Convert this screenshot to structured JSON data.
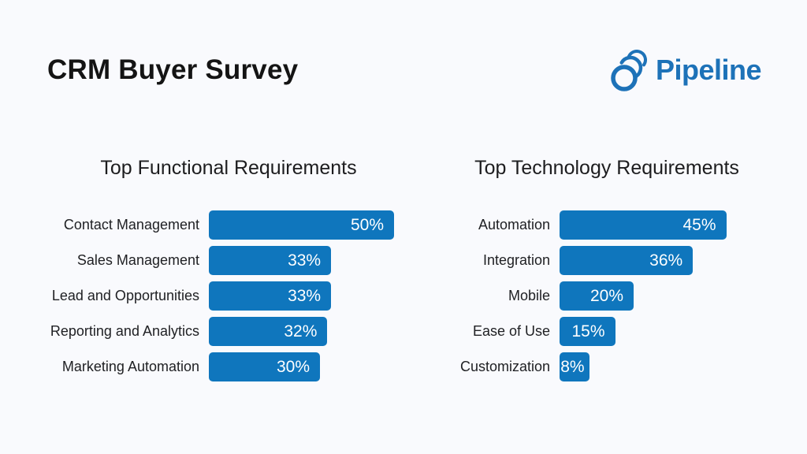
{
  "header": {
    "title": "CRM Buyer Survey"
  },
  "logo": {
    "text": "Pipeline",
    "color": "#1d72b8",
    "icon": "pipeline-rings-icon"
  },
  "colors": {
    "background": "#f9fafd",
    "bar": "#0f76bd",
    "bar_value_text": "#ffffff",
    "category_label": "#202124",
    "title_text": "#141414"
  },
  "chart_data": [
    {
      "type": "bar",
      "orientation": "horizontal",
      "title": "Top Functional Requirements",
      "categories": [
        "Contact Management",
        "Sales Management",
        "Lead and Opportunities",
        "Reporting and Analytics",
        "Marketing Automation"
      ],
      "values": [
        50,
        33,
        33,
        32,
        30
      ],
      "value_labels": [
        "50%",
        "33%",
        "33%",
        "32%",
        "30%"
      ],
      "unit": "%",
      "xlim": [
        0,
        55
      ],
      "bar_color": "#0f76bd",
      "grid": false,
      "legend": false,
      "value_label_position": "inside-right"
    },
    {
      "type": "bar",
      "orientation": "horizontal",
      "title": "Top Technology Requirements",
      "categories": [
        "Automation",
        "Integration",
        "Mobile",
        "Ease of Use",
        "Customization"
      ],
      "values": [
        45,
        36,
        20,
        15,
        8
      ],
      "value_labels": [
        "45%",
        "36%",
        "20%",
        "15%",
        "8%"
      ],
      "unit": "%",
      "xlim": [
        0,
        55
      ],
      "bar_color": "#0f76bd",
      "grid": false,
      "legend": false,
      "value_label_position": "inside-right"
    }
  ]
}
